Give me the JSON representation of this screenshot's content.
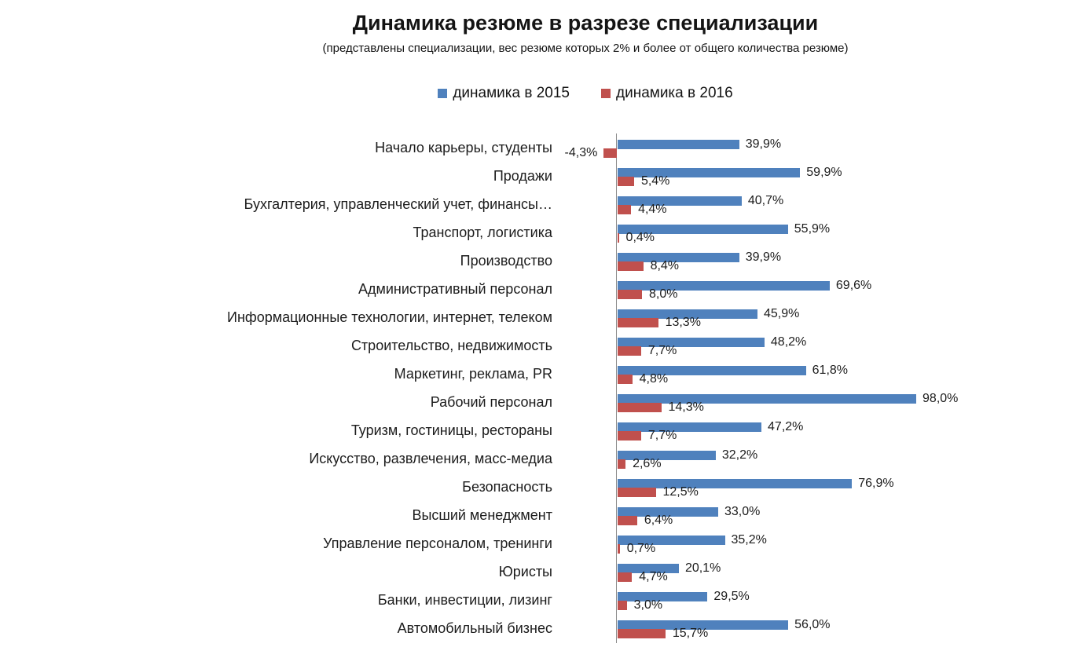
{
  "title": "Динамика резюме в разрезе специализации",
  "subtitle": "(представлены специализации, вес резюме которых 2% и более от общего количества резюме)",
  "legend": {
    "items": [
      {
        "label": "динамика в 2015",
        "color": "#4F81BD"
      },
      {
        "label": "динамика в 2016",
        "color": "#C0504D"
      }
    ]
  },
  "chart_data": {
    "type": "bar",
    "orientation": "horizontal",
    "title": "Динамика резюме в разрезе специализации",
    "subtitle": "(представлены специализации, вес резюме которых 2% и более от общего количества резюме)",
    "categories": [
      "Начало карьеры, студенты",
      "Продажи",
      "Бухгалтерия, управленческий учет, финансы…",
      "Транспорт, логистика",
      "Производство",
      "Административный персонал",
      "Информационные технологии, интернет, телеком",
      "Строительство, недвижимость",
      "Маркетинг, реклама, PR",
      "Рабочий персонал",
      "Туризм, гостиницы, рестораны",
      "Искусство, развлечения, масс-медиа",
      "Безопасность",
      "Высший менеджмент",
      "Управление персоналом, тренинги",
      "Юристы",
      "Банки, инвестиции, лизинг",
      "Автомобильный бизнес"
    ],
    "series": [
      {
        "name": "динамика в 2015",
        "color": "#4F81BD",
        "values": [
          39.9,
          59.9,
          40.7,
          55.9,
          39.9,
          69.6,
          45.9,
          48.2,
          61.8,
          98.0,
          47.2,
          32.2,
          76.9,
          33.0,
          35.2,
          20.1,
          29.5,
          56.0
        ]
      },
      {
        "name": "динамика в 2016",
        "color": "#C0504D",
        "values": [
          -4.3,
          5.4,
          4.4,
          0.4,
          8.4,
          8.0,
          13.3,
          7.7,
          4.8,
          14.3,
          7.7,
          2.6,
          12.5,
          6.4,
          0.7,
          4.7,
          3.0,
          15.7
        ]
      }
    ],
    "data_labels": true,
    "value_suffix": "%",
    "decimal_separator": ",",
    "value_axis": {
      "axis_line_visible": true,
      "tick_labels_visible": false,
      "range_hint": [
        -10,
        100
      ]
    },
    "legend_position": "top",
    "gridlines": false
  }
}
